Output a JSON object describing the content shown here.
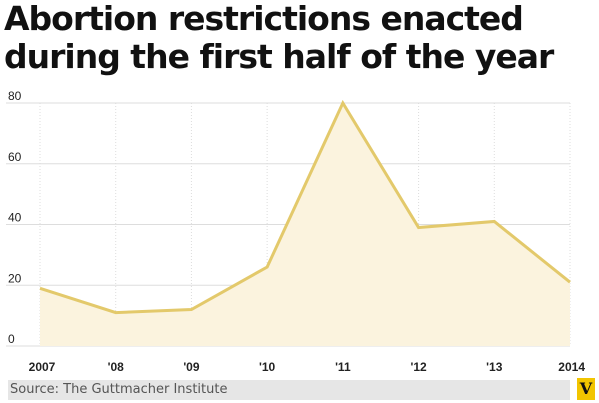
{
  "header": {
    "title_line1": "Abortion restrictions enacted",
    "title_line2": "during the first half of the year"
  },
  "chart_data": {
    "type": "area",
    "categories": [
      "2007",
      "'08",
      "'09",
      "'10",
      "'11",
      "'12",
      "'13",
      "2014"
    ],
    "values": [
      19,
      11,
      12,
      26,
      80,
      39,
      41,
      21
    ],
    "yticks": [
      "0",
      "20",
      "40",
      "60",
      "80"
    ],
    "ylim": [
      0,
      80
    ],
    "grid": true,
    "line_color": "#e3c96b",
    "fill_color": "#fbf3de",
    "grid_color": "#dddddd"
  },
  "footer": {
    "source": "Source: The Guttmacher Institute",
    "logo_text": "V",
    "logo_color": "#f2c500"
  }
}
